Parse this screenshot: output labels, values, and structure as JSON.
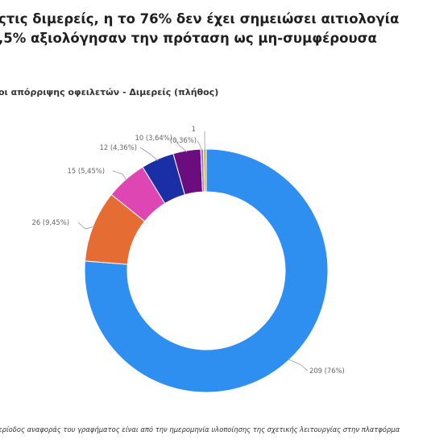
{
  "title": {
    "line1": "ςτις διμερείς, η το 76% δεν έχει σημειώσει αιτιολογία",
    "line2": ",5% αξιολόγησαν την πρόταση ως μη-συμφέρουσα"
  },
  "subtitle": "οι απόρριψης οφειλετών - Διμερείς (πλήθος)",
  "footnote": "ερίοδος αναφοράς του γραφήματος είναι από την ημερομηνία υλοποίησης της σχετικής λειτουργίας στην πλατφόρμα",
  "chart_data": {
    "type": "pie",
    "variant": "donut",
    "slices": [
      {
        "value": 209,
        "label": "209 (76%)",
        "color": "#2f8ff0"
      },
      {
        "value": 26,
        "label": "26 (9,45%)",
        "color": "#e56c33"
      },
      {
        "value": 15,
        "label": "15 (5,45%)",
        "color": "#de47b3"
      },
      {
        "value": 12,
        "label": "12 (4,36%)",
        "color": "#1a2ea6"
      },
      {
        "value": 10,
        "label": "10 (3,64%)",
        "color": "#6b0d7e"
      },
      {
        "value": 1,
        "label": "(0,36%)",
        "color": "#9a7bdb"
      },
      {
        "value": 1,
        "label": "1",
        "color": "#e0b02a"
      }
    ]
  }
}
